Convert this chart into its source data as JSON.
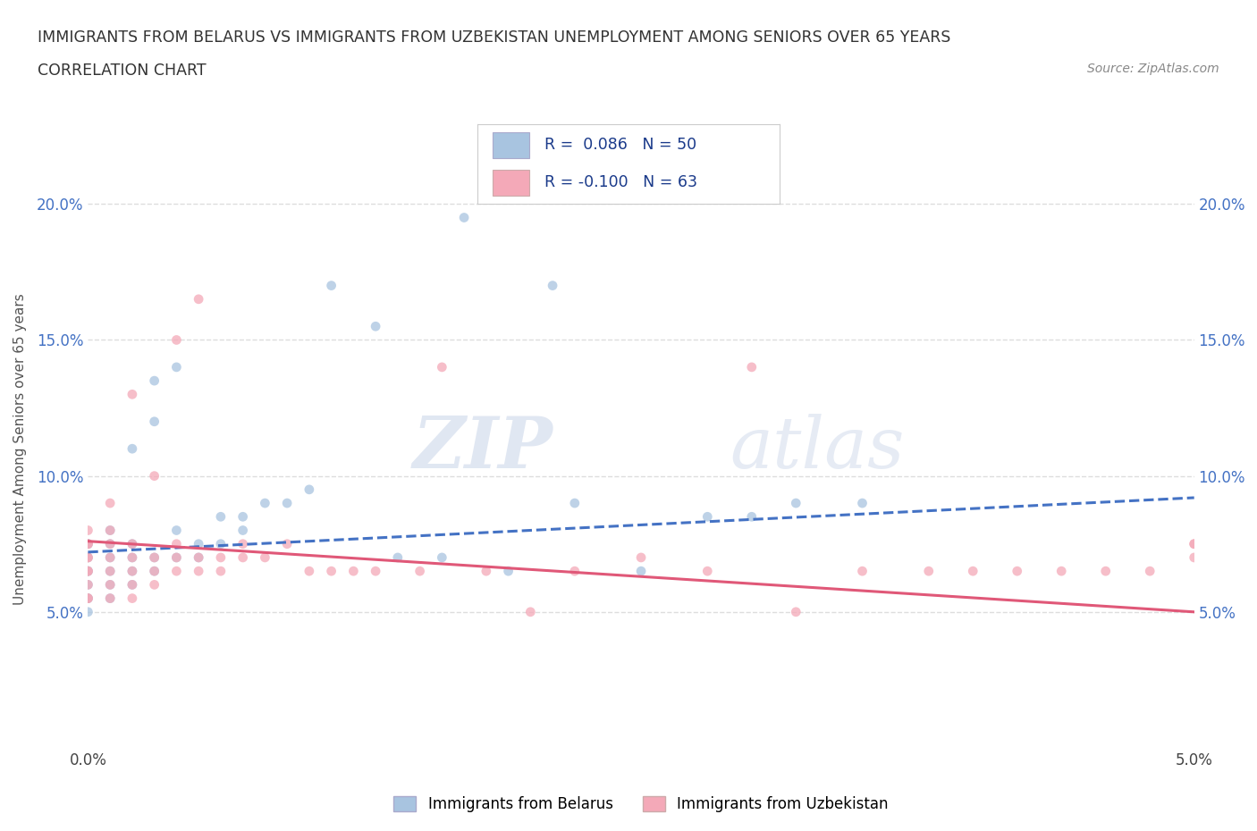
{
  "title_line1": "IMMIGRANTS FROM BELARUS VS IMMIGRANTS FROM UZBEKISTAN UNEMPLOYMENT AMONG SENIORS OVER 65 YEARS",
  "title_line2": "CORRELATION CHART",
  "source_text": "Source: ZipAtlas.com",
  "ylabel": "Unemployment Among Seniors over 65 years",
  "xmin": 0.0,
  "xmax": 0.05,
  "ymin": 0.0,
  "ymax": 0.22,
  "ytick_positions": [
    0.05,
    0.1,
    0.15,
    0.2
  ],
  "ytick_labels": [
    "5.0%",
    "10.0%",
    "15.0%",
    "20.0%"
  ],
  "color_belarus": "#a8c4e0",
  "color_uzbekistan": "#f4a9b8",
  "line_color_belarus": "#4472c4",
  "line_color_uzbekistan": "#e05878",
  "watermark_color": "#dde5f0",
  "background_color": "#ffffff",
  "grid_color": "#dddddd",
  "scatter_size": 60,
  "scatter_alpha": 0.75,
  "line_width": 2.2,
  "belarus_scatter_x": [
    0.0,
    0.0,
    0.0,
    0.0,
    0.0,
    0.0,
    0.0,
    0.0,
    0.0,
    0.001,
    0.001,
    0.001,
    0.001,
    0.001,
    0.001,
    0.002,
    0.002,
    0.002,
    0.002,
    0.002,
    0.003,
    0.003,
    0.003,
    0.003,
    0.004,
    0.004,
    0.004,
    0.005,
    0.005,
    0.006,
    0.006,
    0.007,
    0.007,
    0.008,
    0.009,
    0.01,
    0.011,
    0.013,
    0.014,
    0.016,
    0.017,
    0.019,
    0.021,
    0.022,
    0.025,
    0.028,
    0.03,
    0.032,
    0.035
  ],
  "belarus_scatter_y": [
    0.05,
    0.055,
    0.06,
    0.065,
    0.07,
    0.075,
    0.055,
    0.065,
    0.075,
    0.055,
    0.06,
    0.065,
    0.07,
    0.075,
    0.08,
    0.06,
    0.065,
    0.07,
    0.075,
    0.11,
    0.065,
    0.07,
    0.12,
    0.135,
    0.07,
    0.08,
    0.14,
    0.07,
    0.075,
    0.075,
    0.085,
    0.08,
    0.085,
    0.09,
    0.09,
    0.095,
    0.17,
    0.155,
    0.07,
    0.07,
    0.195,
    0.065,
    0.17,
    0.09,
    0.065,
    0.085,
    0.085,
    0.09,
    0.09
  ],
  "uzbekistan_scatter_x": [
    0.0,
    0.0,
    0.0,
    0.0,
    0.0,
    0.0,
    0.0,
    0.0,
    0.0,
    0.0,
    0.001,
    0.001,
    0.001,
    0.001,
    0.001,
    0.001,
    0.001,
    0.002,
    0.002,
    0.002,
    0.002,
    0.002,
    0.002,
    0.003,
    0.003,
    0.003,
    0.003,
    0.004,
    0.004,
    0.004,
    0.004,
    0.005,
    0.005,
    0.005,
    0.006,
    0.006,
    0.007,
    0.007,
    0.008,
    0.009,
    0.01,
    0.011,
    0.012,
    0.013,
    0.015,
    0.016,
    0.018,
    0.02,
    0.022,
    0.025,
    0.028,
    0.03,
    0.032,
    0.035,
    0.038,
    0.04,
    0.042,
    0.044,
    0.046,
    0.048,
    0.05,
    0.05,
    0.05
  ],
  "uzbekistan_scatter_y": [
    0.055,
    0.06,
    0.065,
    0.07,
    0.075,
    0.08,
    0.055,
    0.065,
    0.07,
    0.075,
    0.055,
    0.06,
    0.065,
    0.07,
    0.075,
    0.08,
    0.09,
    0.055,
    0.06,
    0.065,
    0.07,
    0.075,
    0.13,
    0.06,
    0.065,
    0.07,
    0.1,
    0.065,
    0.07,
    0.075,
    0.15,
    0.065,
    0.07,
    0.165,
    0.065,
    0.07,
    0.07,
    0.075,
    0.07,
    0.075,
    0.065,
    0.065,
    0.065,
    0.065,
    0.065,
    0.14,
    0.065,
    0.05,
    0.065,
    0.07,
    0.065,
    0.14,
    0.05,
    0.065,
    0.065,
    0.065,
    0.065,
    0.065,
    0.065,
    0.065,
    0.07,
    0.075,
    0.075
  ],
  "trend_belarus_x0": 0.0,
  "trend_belarus_x1": 0.05,
  "trend_belarus_y0": 0.072,
  "trend_belarus_y1": 0.092,
  "trend_uzbekistan_x0": 0.0,
  "trend_uzbekistan_x1": 0.05,
  "trend_uzbekistan_y0": 0.076,
  "trend_uzbekistan_y1": 0.05
}
